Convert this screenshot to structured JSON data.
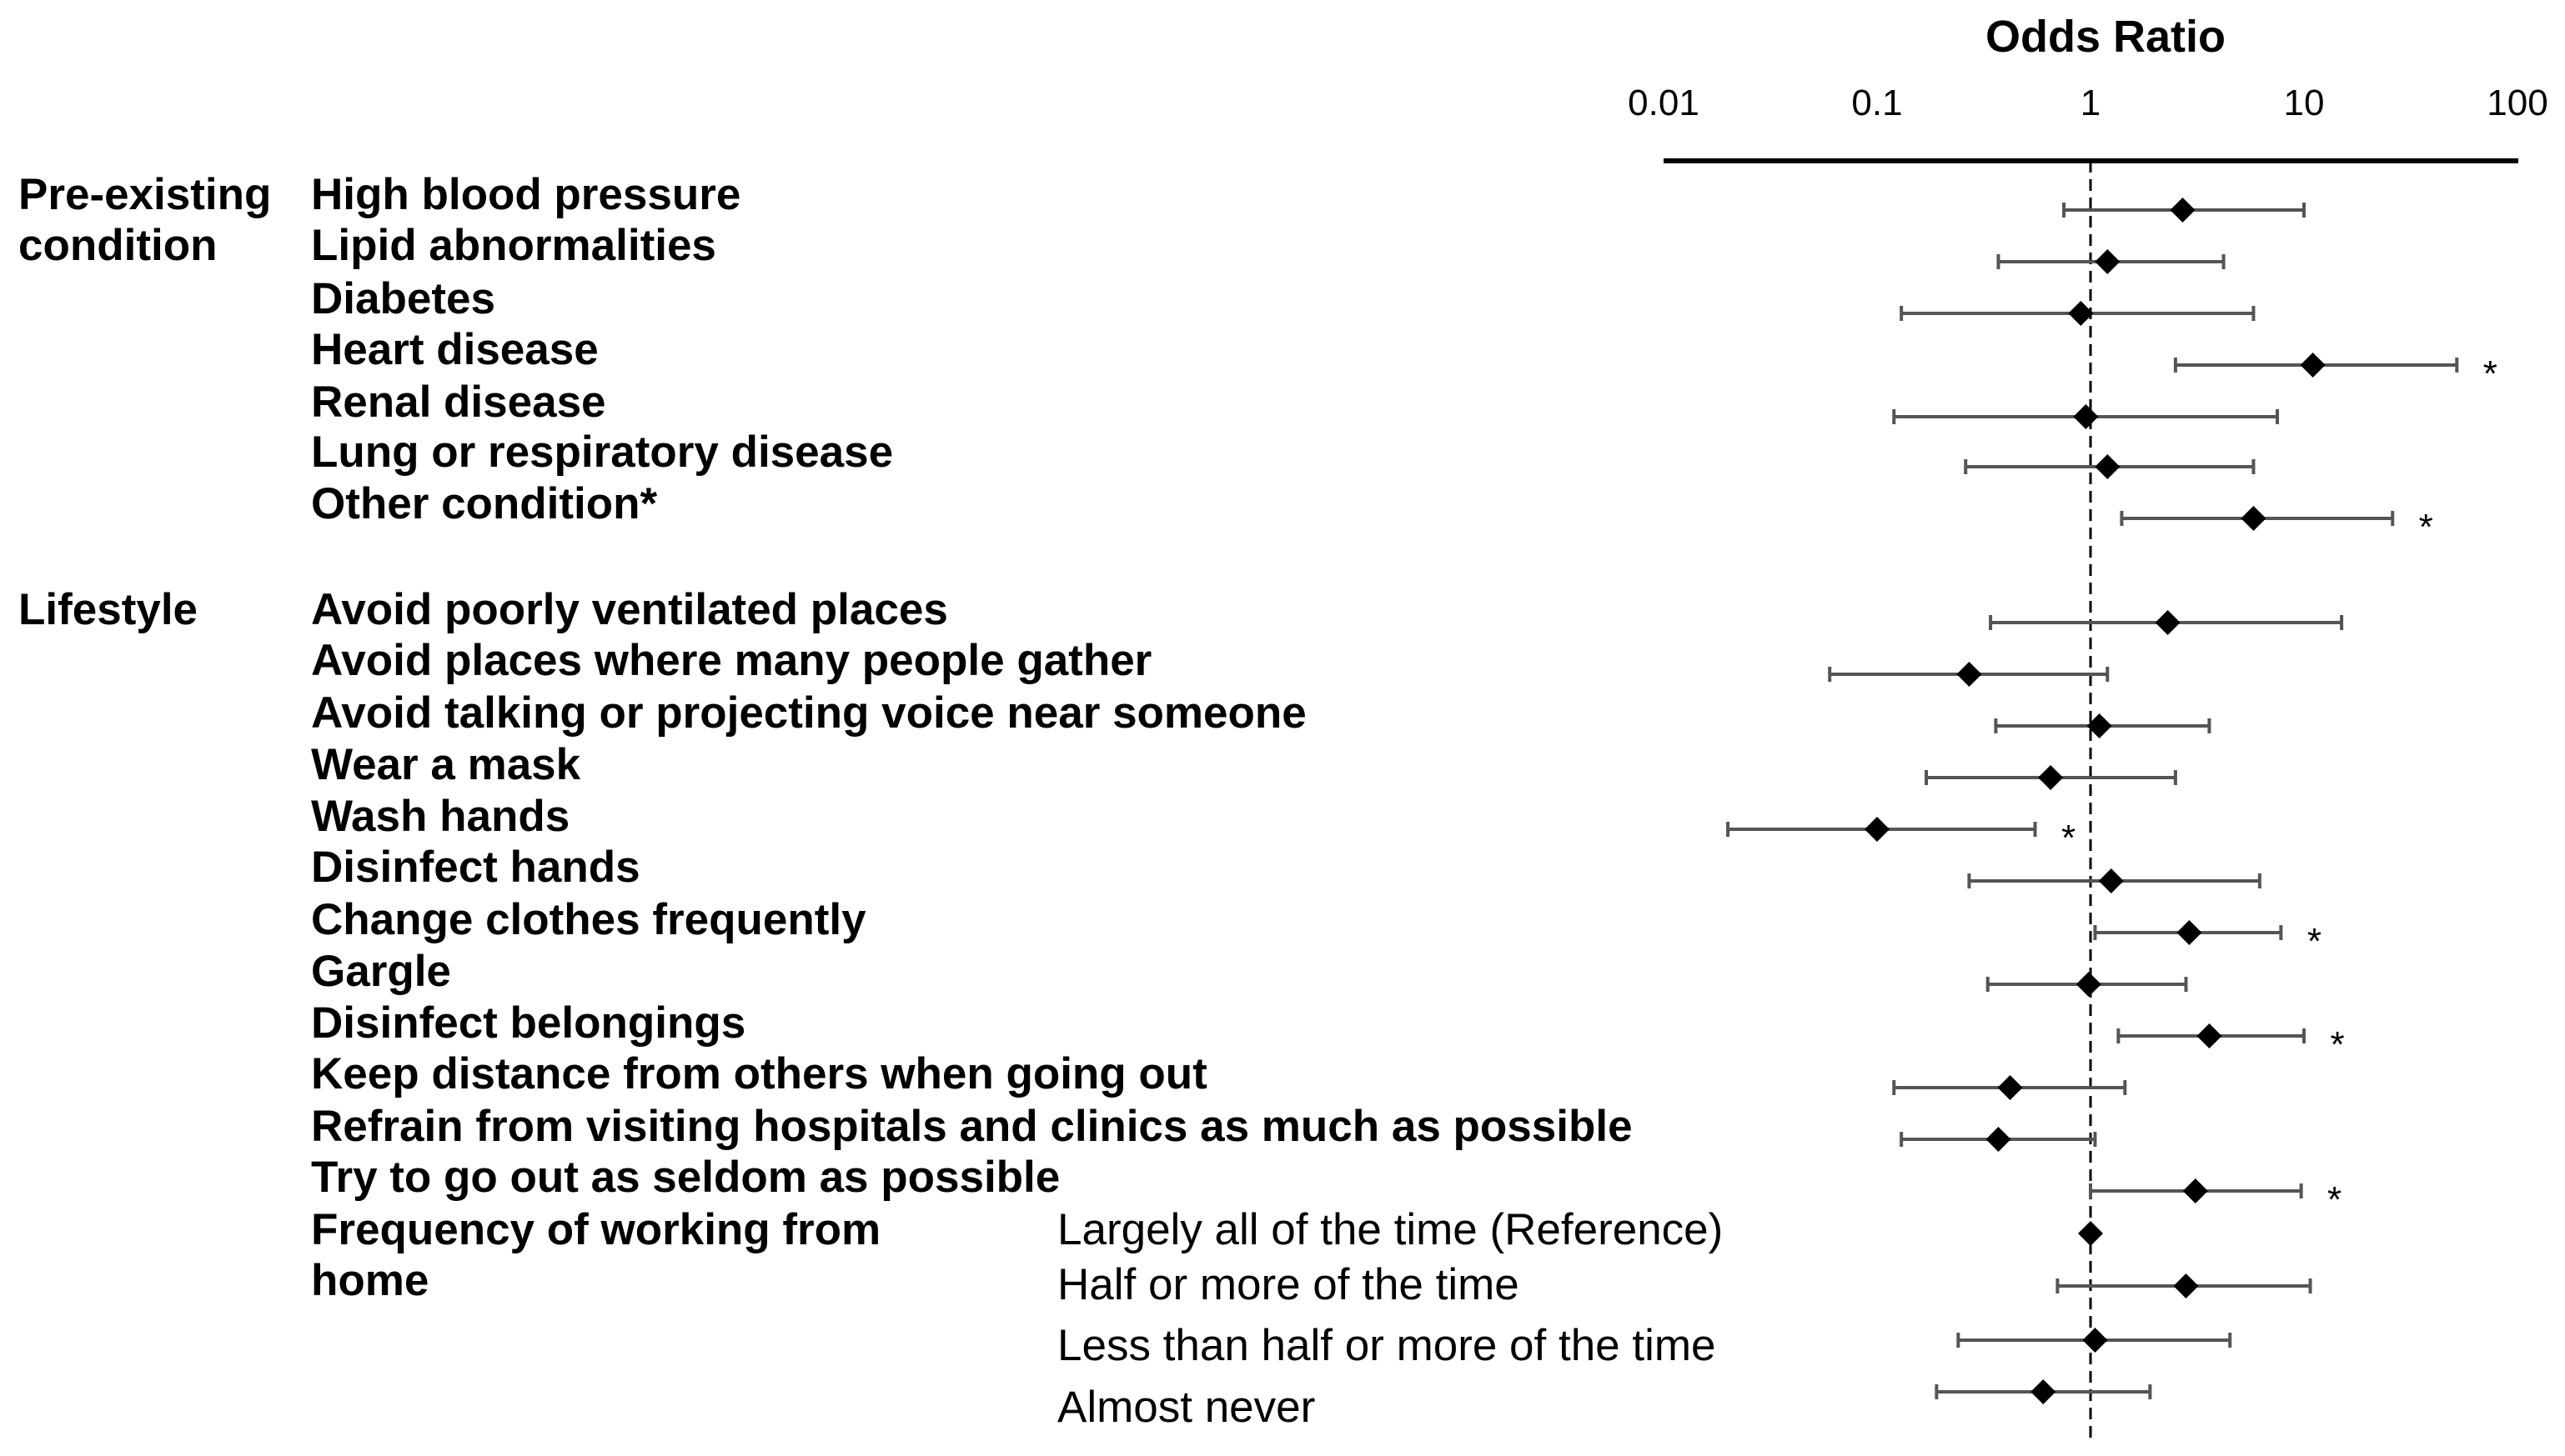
{
  "chart_data": {
    "type": "forest",
    "title": "Odds Ratio",
    "xscale": "log",
    "xlim": [
      0.01,
      100
    ],
    "reference_line": 1,
    "ticks": [
      "0.01",
      "0.1",
      "1",
      "10",
      "100"
    ],
    "tick_values": [
      0.01,
      0.1,
      1,
      10,
      100
    ],
    "significance_marker": "*",
    "groups": [
      {
        "name_lines": [
          "Pre-existing",
          "condition"
        ],
        "rows": [
          {
            "label": "High blood pressure",
            "or": 2.7,
            "lo": 0.75,
            "hi": 10.0,
            "sig": false
          },
          {
            "label": "Lipid abnormalities",
            "or": 1.2,
            "lo": 0.37,
            "hi": 4.2,
            "sig": false
          },
          {
            "label": "Diabetes",
            "or": 0.9,
            "lo": 0.13,
            "hi": 5.8,
            "sig": false
          },
          {
            "label": "Heart disease",
            "or": 11.0,
            "lo": 2.5,
            "hi": 52.0,
            "sig": true
          },
          {
            "label": "Renal disease",
            "or": 0.95,
            "lo": 0.12,
            "hi": 7.5,
            "sig": false
          },
          {
            "label": "Lung or respiratory disease",
            "or": 1.2,
            "lo": 0.26,
            "hi": 5.8,
            "sig": false
          },
          {
            "label": "Other condition*",
            "or": 5.8,
            "lo": 1.4,
            "hi": 26.0,
            "sig": true
          }
        ]
      },
      {
        "name_lines": [
          "Lifestyle"
        ],
        "rows": [
          {
            "label": "Avoid poorly ventilated places",
            "or": 2.3,
            "lo": 0.34,
            "hi": 15.0,
            "sig": false
          },
          {
            "label": "Avoid places where many people gather",
            "or": 0.27,
            "lo": 0.06,
            "hi": 1.2,
            "sig": false
          },
          {
            "label": "Avoid talking or projecting voice near someone",
            "or": 1.1,
            "lo": 0.36,
            "hi": 3.6,
            "sig": false
          },
          {
            "label": "Wear a mask",
            "or": 0.65,
            "lo": 0.17,
            "hi": 2.5,
            "sig": false
          },
          {
            "label": "Wash hands",
            "or": 0.1,
            "lo": 0.02,
            "hi": 0.55,
            "sig": true
          },
          {
            "label": "Disinfect hands",
            "or": 1.25,
            "lo": 0.27,
            "hi": 6.2,
            "sig": false
          },
          {
            "label": "Change clothes frequently",
            "or": 2.9,
            "lo": 1.05,
            "hi": 7.8,
            "sig": true
          },
          {
            "label": "Gargle",
            "or": 0.98,
            "lo": 0.33,
            "hi": 2.8,
            "sig": false
          },
          {
            "label": "Disinfect belongings",
            "or": 3.6,
            "lo": 1.35,
            "hi": 10.0,
            "sig": true
          },
          {
            "label": "Keep distance from others when going out",
            "or": 0.42,
            "lo": 0.12,
            "hi": 1.45,
            "sig": false
          },
          {
            "label": "Refrain from visiting hospitals and clinics as much as possible",
            "or": 0.37,
            "lo": 0.13,
            "hi": 1.05,
            "sig": false
          },
          {
            "label": "Try to go out as seldom as possible",
            "or": 3.1,
            "lo": 1.0,
            "hi": 9.7,
            "sig": true
          }
        ]
      }
    ],
    "working_from_home": {
      "label_lines": [
        "Frequency of working from",
        "home"
      ],
      "rows": [
        {
          "label": "Largely all of the time (Reference)",
          "or": 1.0,
          "lo": 1.0,
          "hi": 1.0,
          "sig": false
        },
        {
          "label": "Half or more of the time",
          "or": 2.8,
          "lo": 0.7,
          "hi": 10.7,
          "sig": false
        },
        {
          "label": "Less than half or more of the time",
          "or": 1.05,
          "lo": 0.24,
          "hi": 4.5,
          "sig": false
        },
        {
          "label": "Almost never",
          "or": 0.6,
          "lo": 0.19,
          "hi": 1.9,
          "sig": false
        }
      ]
    }
  }
}
